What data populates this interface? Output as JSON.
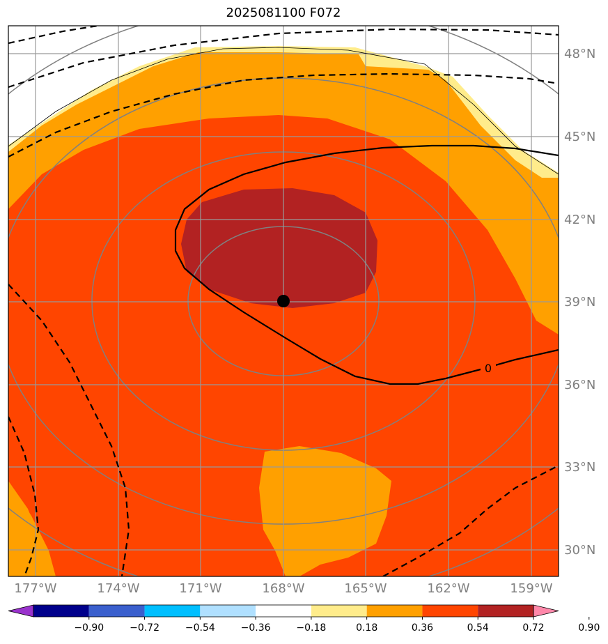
{
  "title": "2025081100 F072",
  "lat_labels": [
    "48°N",
    "45°N",
    "42°N",
    "39°N",
    "36°N",
    "33°N",
    "30°N"
  ],
  "lon_labels": [
    "177°W",
    "174°W",
    "171°W",
    "168°W",
    "165°W",
    "162°W",
    "159°W"
  ],
  "contour_label": "0",
  "colorbar": {
    "levels": [
      "−0.90",
      "−0.72",
      "−0.54",
      "−0.36",
      "−0.18",
      "0.18",
      "0.36",
      "0.54",
      "0.72",
      "0.90"
    ],
    "colors": [
      "#9932CC",
      "#00008B",
      "#3A5FCD",
      "#00BFFF",
      "#B0E0FF",
      "#FFFFFF",
      "#FFEC8B",
      "#FFA000",
      "#FF4500",
      "#B22222",
      "#FF88AA"
    ],
    "extend": "both"
  },
  "center_marker": {
    "lat": 39.0,
    "lon": -168.0
  }
}
